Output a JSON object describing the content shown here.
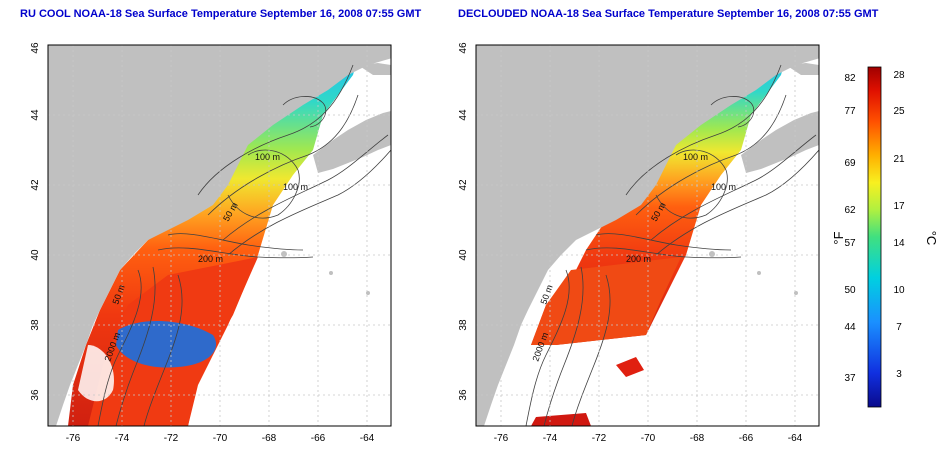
{
  "panels": [
    {
      "title": "RU COOL NOAA-18 Sea Surface Temperature September 16, 2008 07:55 GMT",
      "variant": "raw",
      "x_ticks": [
        "-76",
        "-74",
        "-72",
        "-70",
        "-68",
        "-66",
        "-64"
      ],
      "y_ticks": [
        "36",
        "38",
        "40",
        "42",
        "44",
        "46"
      ],
      "contour_labels": [
        "100 m",
        "100 m",
        "50 m",
        "200 m",
        "50 m",
        "2000 m"
      ]
    },
    {
      "title": "DECLOUDED NOAA-18 Sea Surface Temperature September 16, 2008 07:55 GMT",
      "variant": "declouded",
      "x_ticks": [
        "-76",
        "-74",
        "-72",
        "-70",
        "-68",
        "-66",
        "-64"
      ],
      "y_ticks": [
        "36",
        "38",
        "40",
        "42",
        "44",
        "46"
      ],
      "contour_labels": [
        "100 m",
        "100 m",
        "50 m",
        "200 m",
        "50 m",
        "2000 m"
      ]
    }
  ],
  "colorbar": {
    "fahrenheit_label": "°F",
    "celsius_label": "°C",
    "fahrenheit_ticks": [
      "82",
      "77",
      "69",
      "62",
      "57",
      "50",
      "44",
      "37"
    ],
    "celsius_ticks": [
      "28",
      "25",
      "21",
      "17",
      "14",
      "10",
      "7",
      "3"
    ]
  },
  "colors": {
    "land": "#c0c0c0",
    "grid": "#c8c8c8",
    "contour": "#404040",
    "title": "#0000cc"
  }
}
